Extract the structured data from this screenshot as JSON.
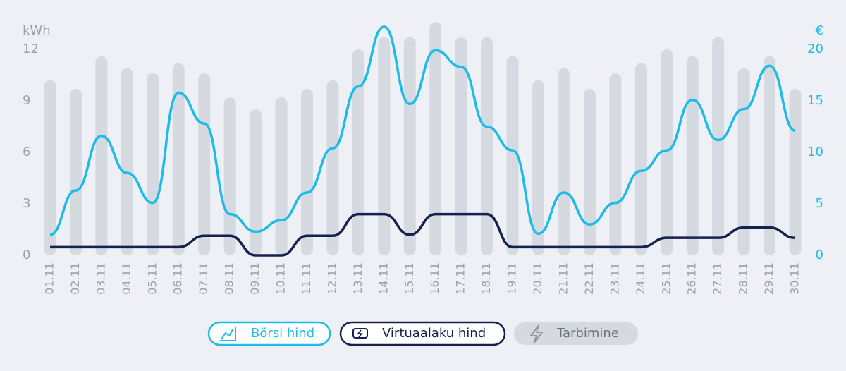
{
  "chart_data": {
    "type": "bar",
    "y_label": "kWh",
    "y2_label": "€",
    "categories": [
      "01.11",
      "02.11",
      "03.11",
      "04.11",
      "05.11",
      "06.11",
      "07.11",
      "08.11",
      "09.11",
      "10.11",
      "11.11",
      "12.11",
      "13.11",
      "14.11",
      "15.11",
      "16.11",
      "17.11",
      "18.11",
      "19.11",
      "20.11",
      "21.11",
      "22.11",
      "23.11",
      "24.11",
      "25.11",
      "26.11",
      "27.11",
      "28.11",
      "29.11",
      "30.11"
    ],
    "ylim": [
      0,
      12
    ],
    "yticks": [
      0,
      3,
      6,
      9,
      12
    ],
    "y2lim": [
      0,
      20
    ],
    "y2ticks": [
      0,
      5,
      10,
      15,
      20
    ],
    "series": [
      {
        "name": "Börsi hind",
        "type": "line",
        "axis": "y2",
        "color": "#1bbce8",
        "values": [
          2.0,
          6.3,
          11.6,
          8.0,
          5.1,
          15.8,
          12.8,
          4.0,
          2.3,
          3.4,
          6.1,
          10.4,
          16.4,
          22.2,
          14.7,
          19.9,
          18.3,
          12.5,
          10.2,
          2.1,
          6.1,
          3.0,
          5.1,
          8.2,
          10.2,
          15.1,
          11.2,
          14.2,
          18.4,
          12.1
        ]
      },
      {
        "name": "Virtuaalaku hind",
        "type": "line",
        "axis": "y2",
        "color": "#16214f",
        "values": [
          0.8,
          0.8,
          0.8,
          0.8,
          0.8,
          0.8,
          1.9,
          1.9,
          0,
          0,
          1.9,
          1.9,
          4.0,
          4.0,
          2.0,
          4.0,
          4.0,
          4.0,
          0.8,
          0.8,
          0.8,
          0.8,
          0.8,
          0.8,
          1.7,
          1.7,
          1.7,
          2.7,
          2.7,
          1.7
        ]
      },
      {
        "name": "Tarbimine",
        "type": "bar",
        "color": "#d5d9e0",
        "values": [
          10.2,
          9.7,
          11.6,
          10.9,
          10.6,
          11.2,
          10.6,
          9.2,
          8.5,
          9.2,
          9.7,
          10.2,
          12.0,
          12.7,
          12.7,
          13.6,
          12.7,
          12.7,
          11.6,
          10.2,
          10.9,
          9.7,
          10.6,
          11.2,
          12.0,
          11.6,
          12.7,
          10.9,
          11.6,
          9.7
        ]
      }
    ]
  }
}
